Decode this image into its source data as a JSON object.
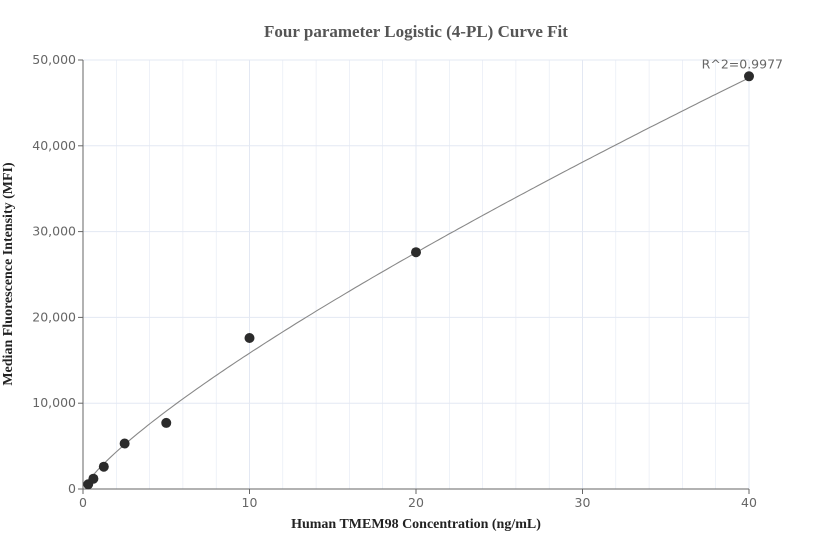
{
  "chart_data": {
    "type": "scatter",
    "title": "Four parameter Logistic (4-PL) Curve Fit",
    "xlabel": "Human TMEM98 Concentration (ng/mL)",
    "ylabel": "Median Fluorescence Intensity (MFI)",
    "xlim": [
      0,
      40
    ],
    "ylim": [
      0,
      50000
    ],
    "x_ticks": [
      0,
      10,
      20,
      30,
      40
    ],
    "x_tick_labels": [
      "0",
      "10",
      "20",
      "30",
      "40"
    ],
    "y_ticks": [
      0,
      10000,
      20000,
      30000,
      40000,
      50000
    ],
    "y_tick_labels": [
      "0",
      "10,000",
      "20,000",
      "30,000",
      "40,000",
      "50,000"
    ],
    "grid": true,
    "points": {
      "x": [
        0.3125,
        0.625,
        1.25,
        2.5,
        5,
        10,
        20,
        40
      ],
      "y": [
        550,
        1200,
        2600,
        5300,
        7700,
        17600,
        27600,
        48100
      ]
    },
    "fit_line": "4-PL curve",
    "annotation": "R^2=0.9977",
    "colors": {
      "points": "#2b2b2b",
      "curve": "#888888",
      "grid": "#e3e8f3",
      "axis": "#666666"
    }
  }
}
